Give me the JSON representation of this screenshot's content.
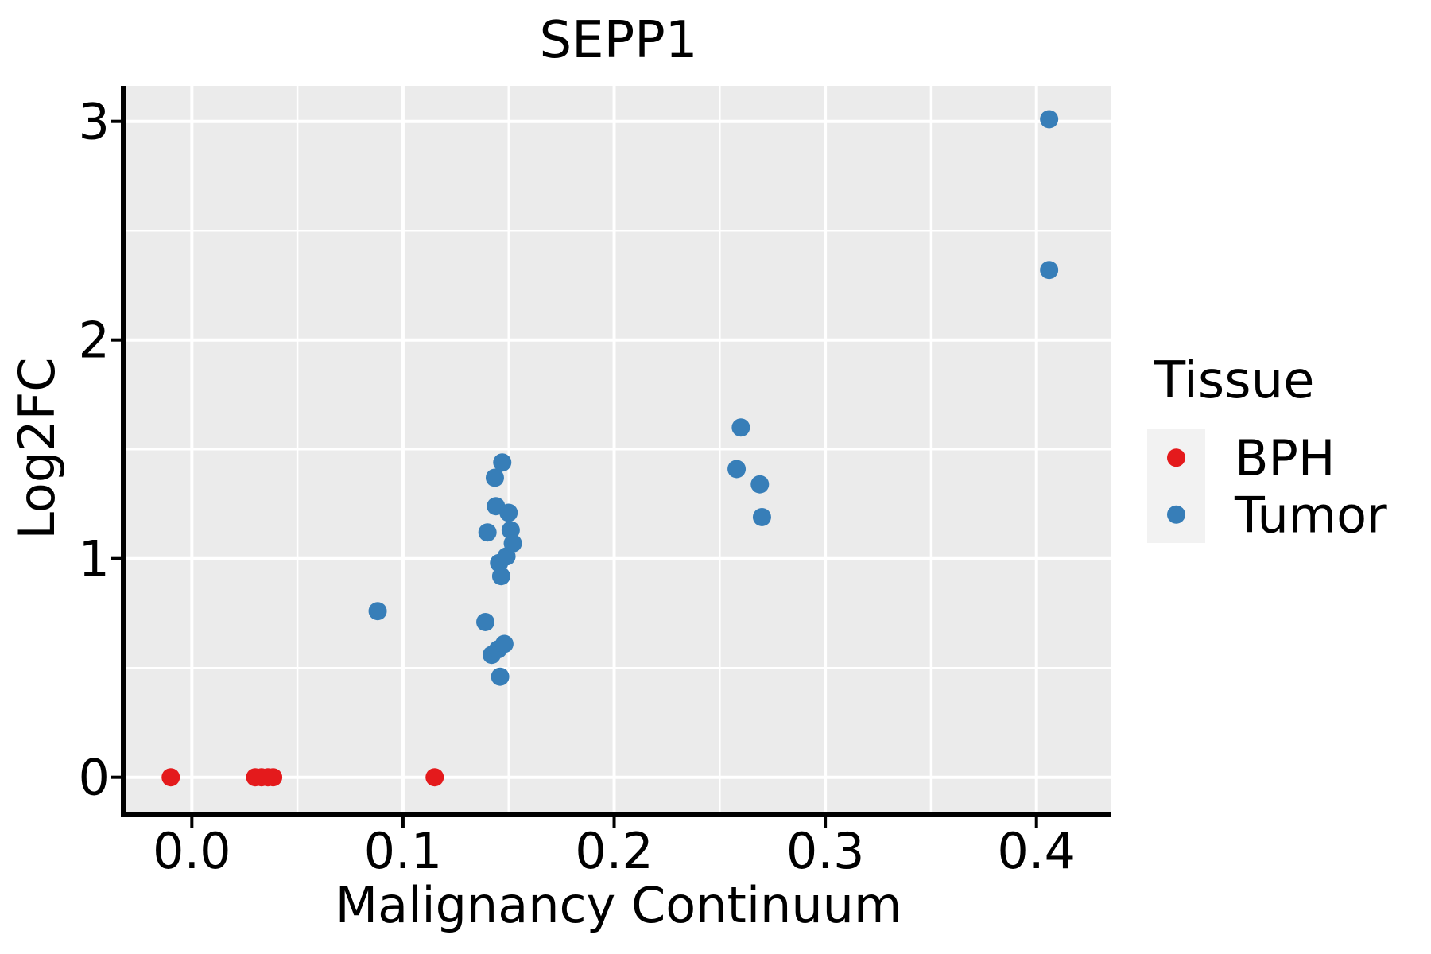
{
  "figure": {
    "background": "#ffffff"
  },
  "chart_data": {
    "type": "scatter",
    "title": "SEPP1",
    "xlabel": "Malignancy Continuum",
    "ylabel": "Log2FC",
    "panel_bg": "#ebebeb",
    "grid_color": "#ffffff",
    "axis_color": "#000000",
    "text_color": "#000000",
    "grid": "major+minor",
    "xlim": [
      -0.031,
      0.4355
    ],
    "ylim": [
      -0.1575,
      3.1625
    ],
    "x_ticks": [
      0.0,
      0.1,
      0.2,
      0.3,
      0.4
    ],
    "x_tick_labels": [
      "0.0",
      "0.1",
      "0.2",
      "0.3",
      "0.4"
    ],
    "x_minor_ticks": [
      0.05,
      0.15,
      0.25,
      0.35
    ],
    "y_ticks": [
      0,
      1,
      2,
      3
    ],
    "y_tick_labels": [
      "0",
      "1",
      "2",
      "3"
    ],
    "y_minor_ticks": [
      0.5,
      1.5,
      2.5
    ],
    "legend": {
      "title": "Tissue",
      "position": "right",
      "key_bg": "#f2f2f2",
      "entries": [
        {
          "label": "BPH",
          "color": "#e41a1c"
        },
        {
          "label": "Tumor",
          "color": "#377eb8"
        }
      ]
    },
    "series": [
      {
        "name": "BPH",
        "color": "#e41a1c",
        "points": [
          [
            -0.01,
            0
          ],
          [
            0.03,
            0
          ],
          [
            0.033,
            0
          ],
          [
            0.036,
            0
          ],
          [
            0.0385,
            0
          ],
          [
            0.115,
            0
          ]
        ]
      },
      {
        "name": "Tumor",
        "color": "#377eb8",
        "points": [
          [
            0.088,
            0.76
          ],
          [
            0.139,
            0.71
          ],
          [
            0.14,
            1.12
          ],
          [
            0.142,
            0.56
          ],
          [
            0.1435,
            1.37
          ],
          [
            0.144,
            1.24
          ],
          [
            0.145,
            0.585
          ],
          [
            0.1455,
            0.98
          ],
          [
            0.146,
            0.46
          ],
          [
            0.1465,
            0.92
          ],
          [
            0.147,
            1.44
          ],
          [
            0.148,
            0.61
          ],
          [
            0.149,
            1.01
          ],
          [
            0.15,
            1.21
          ],
          [
            0.151,
            1.13
          ],
          [
            0.152,
            1.07
          ],
          [
            0.258,
            1.41
          ],
          [
            0.26,
            1.6
          ],
          [
            0.269,
            1.34
          ],
          [
            0.27,
            1.19
          ],
          [
            0.406,
            2.32
          ],
          [
            0.406,
            3.01
          ]
        ]
      }
    ]
  }
}
